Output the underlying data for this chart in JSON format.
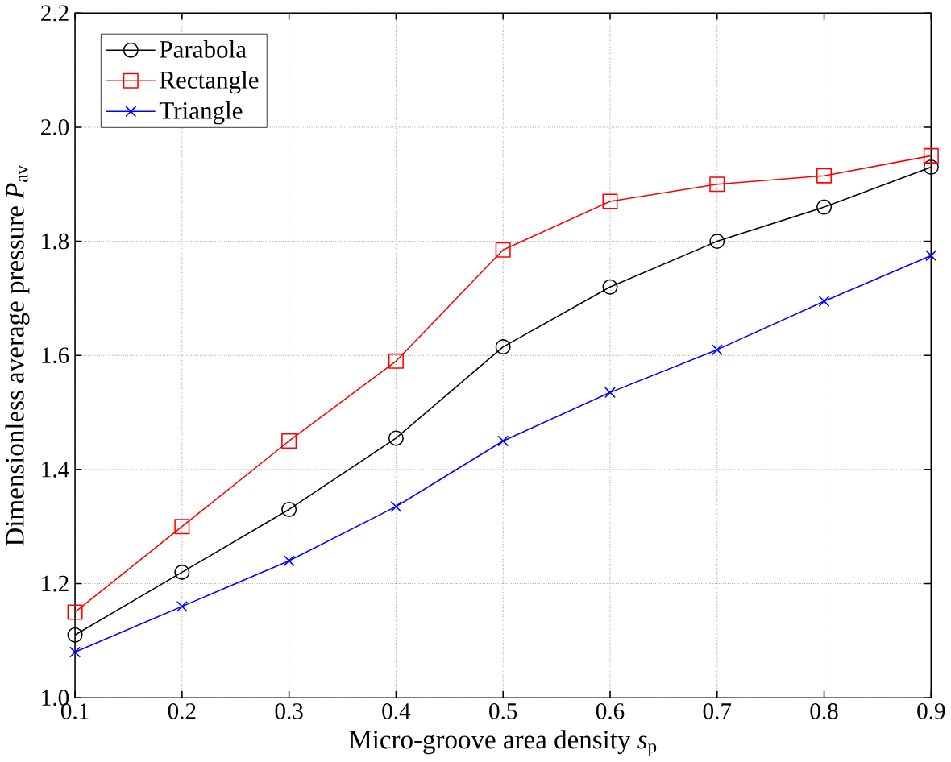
{
  "chart_data": {
    "type": "line",
    "xlabel": "Micro-groove area density *s*$_{p}$",
    "ylabel": "Dimensionless average pressure *P*$_{av}$",
    "x": [
      0.1,
      0.2,
      0.3,
      0.4,
      0.5,
      0.6,
      0.7,
      0.8,
      0.9
    ],
    "series": [
      {
        "name": "Parabola",
        "color": "#000000",
        "marker": "circle",
        "values": [
          1.11,
          1.22,
          1.33,
          1.455,
          1.615,
          1.72,
          1.8,
          1.86,
          1.93
        ]
      },
      {
        "name": "Rectangle",
        "color": "#ff0000",
        "marker": "square",
        "values": [
          1.15,
          1.3,
          1.45,
          1.59,
          1.785,
          1.87,
          1.9,
          1.915,
          1.95
        ]
      },
      {
        "name": "Triangle",
        "color": "#0000ff",
        "marker": "cross",
        "values": [
          1.08,
          1.16,
          1.24,
          1.335,
          1.45,
          1.535,
          1.61,
          1.695,
          1.775
        ]
      }
    ],
    "xlim": [
      0.1,
      0.9
    ],
    "ylim": [
      1.0,
      2.2
    ],
    "xticks": [
      0.1,
      0.2,
      0.3,
      0.4,
      0.5,
      0.6,
      0.7,
      0.8,
      0.9
    ],
    "yticks": [
      {
        "value": 1.0,
        "label": "1.0"
      },
      {
        "value": 1.2,
        "label": "1.2"
      },
      {
        "value": 1.4,
        "label": "1.4"
      },
      {
        "value": 1.6,
        "label": "1.6"
      },
      {
        "value": 1.8,
        "label": "1.8"
      },
      {
        "value": 2.0,
        "label": "2.0"
      },
      {
        "value": 2.2,
        "label": "2.2"
      }
    ],
    "grid": true,
    "legend": "top left",
    "line_style": "solid"
  }
}
